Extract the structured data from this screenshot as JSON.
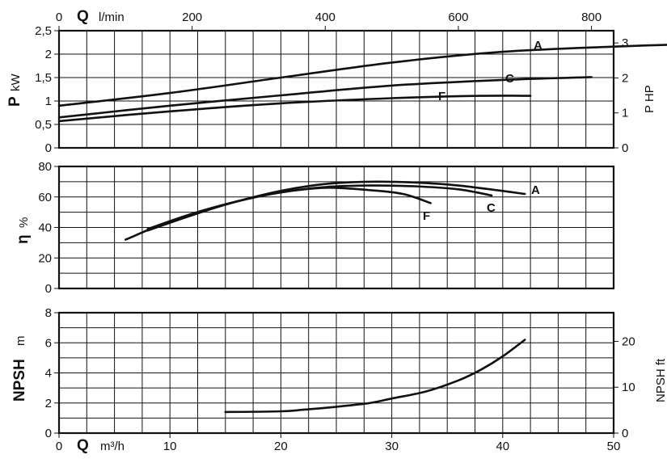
{
  "chart_data": [
    {
      "type": "line",
      "id": "power",
      "ylabel_symbol": "P",
      "ylabel_unit": "kW",
      "y2label": "P HP",
      "ylim": [
        0,
        2.5
      ],
      "yticks": [
        "0",
        "0,5",
        "1",
        "1,5",
        "2",
        "2,5"
      ],
      "y2lim": [
        0,
        3.35
      ],
      "y2ticks": [
        "0",
        "1",
        "2",
        "3"
      ],
      "series": [
        {
          "name": "A",
          "points": [
            [
              0,
              0.9
            ],
            [
              10,
              1.17
            ],
            [
              20,
              1.5
            ],
            [
              30,
              1.82
            ],
            [
              40,
              2.05
            ],
            [
              50,
              2.16
            ],
            [
              55,
              2.2
            ]
          ]
        },
        {
          "name": "C",
          "points": [
            [
              0,
              0.65
            ],
            [
              10,
              0.9
            ],
            [
              20,
              1.12
            ],
            [
              30,
              1.33
            ],
            [
              40,
              1.45
            ],
            [
              48,
              1.51
            ]
          ]
        },
        {
          "name": "F",
          "points": [
            [
              0,
              0.57
            ],
            [
              10,
              0.78
            ],
            [
              20,
              0.95
            ],
            [
              30,
              1.06
            ],
            [
              38,
              1.11
            ],
            [
              42.5,
              1.11
            ]
          ]
        }
      ]
    },
    {
      "type": "line",
      "id": "efficiency",
      "ylabel_symbol": "η",
      "ylabel_unit": "%",
      "ylim": [
        0,
        80
      ],
      "yticks": [
        "0",
        "20",
        "40",
        "60",
        "80"
      ],
      "series": [
        {
          "name": "A",
          "points": [
            [
              6,
              32
            ],
            [
              10,
              44
            ],
            [
              15,
              55
            ],
            [
              20,
              64
            ],
            [
              24,
              68.5
            ],
            [
              28,
              70
            ],
            [
              32,
              69.5
            ],
            [
              36,
              67.5
            ],
            [
              42,
              62
            ]
          ]
        },
        {
          "name": "C",
          "points": [
            [
              8,
              38
            ],
            [
              12,
              48
            ],
            [
              16,
              57
            ],
            [
              20,
              63
            ],
            [
              24,
              66.5
            ],
            [
              28,
              67.5
            ],
            [
              32,
              67
            ],
            [
              36,
              65
            ],
            [
              39,
              61
            ]
          ]
        },
        {
          "name": "F",
          "points": [
            [
              8,
              39
            ],
            [
              12,
              49
            ],
            [
              16,
              57
            ],
            [
              20,
              63
            ],
            [
              24,
              66
            ],
            [
              28,
              64.5
            ],
            [
              31,
              62
            ],
            [
              33.5,
              56
            ]
          ]
        }
      ]
    },
    {
      "type": "line",
      "id": "npsh",
      "ylabel": "NPSH",
      "ylabel_unit": "m",
      "y2label": "NPSH ft",
      "ylim": [
        0,
        8
      ],
      "yticks": [
        "0",
        "2",
        "4",
        "6",
        "8"
      ],
      "y2lim": [
        0,
        26.25
      ],
      "y2ticks": [
        "0",
        "10",
        "20"
      ],
      "series": [
        {
          "name": "",
          "points": [
            [
              15,
              1.4
            ],
            [
              20,
              1.45
            ],
            [
              22,
              1.55
            ],
            [
              25,
              1.75
            ],
            [
              28,
              2.0
            ],
            [
              30,
              2.3
            ],
            [
              33,
              2.75
            ],
            [
              36,
              3.5
            ],
            [
              38,
              4.2
            ],
            [
              40,
              5.1
            ],
            [
              42,
              6.2
            ]
          ]
        }
      ]
    }
  ],
  "axes": {
    "q_lmin": {
      "symbol": "Q",
      "unit": "l/min",
      "range": [
        0,
        833.3
      ],
      "ticks": [
        "0",
        "200",
        "400",
        "600",
        "800"
      ]
    },
    "q_m3h": {
      "symbol": "Q",
      "unit": "m³/h",
      "range": [
        0,
        50
      ],
      "ticks": [
        "0",
        "10",
        "20",
        "30",
        "40",
        "50"
      ]
    }
  }
}
